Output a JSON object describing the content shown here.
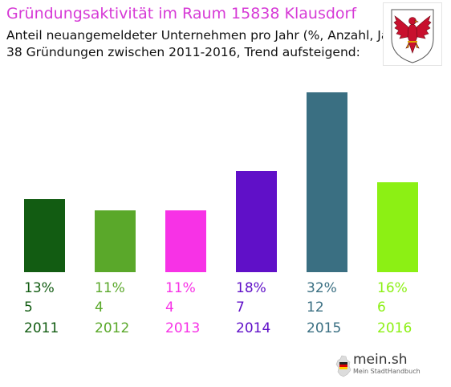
{
  "header": {
    "title": "Gründungsaktivität im Raum 15838 Klausdorf",
    "subtitle_line1": "Anteil neuangemeldeter Unternehmen pro Jahr (%, Anzahl, Jahr)",
    "subtitle_line2": "38 Gründungen zwischen 2011-2016, Trend aufsteigend:"
  },
  "crest": {
    "icon": "brandenburg-eagle-crest-icon"
  },
  "chart_data": {
    "type": "bar",
    "categories": [
      "2011",
      "2012",
      "2013",
      "2014",
      "2015",
      "2016"
    ],
    "values": [
      13,
      11,
      11,
      18,
      32,
      16
    ],
    "percent_labels": [
      "13%",
      "11%",
      "11%",
      "18%",
      "32%",
      "16%"
    ],
    "counts": [
      5,
      4,
      4,
      7,
      12,
      6
    ],
    "count_labels": [
      "5",
      "4",
      "4",
      "7",
      "12",
      "6"
    ],
    "colors": [
      "#125c12",
      "#5aa82a",
      "#f732e6",
      "#6010c8",
      "#3a6f82",
      "#8cf014"
    ],
    "ylim": [
      0,
      32
    ],
    "grid": false,
    "legend": "none"
  },
  "branding": {
    "logo_text": "mein.sh",
    "logo_subtext": "Mein StadtHandbuch",
    "icon": "germany-map-icon"
  }
}
